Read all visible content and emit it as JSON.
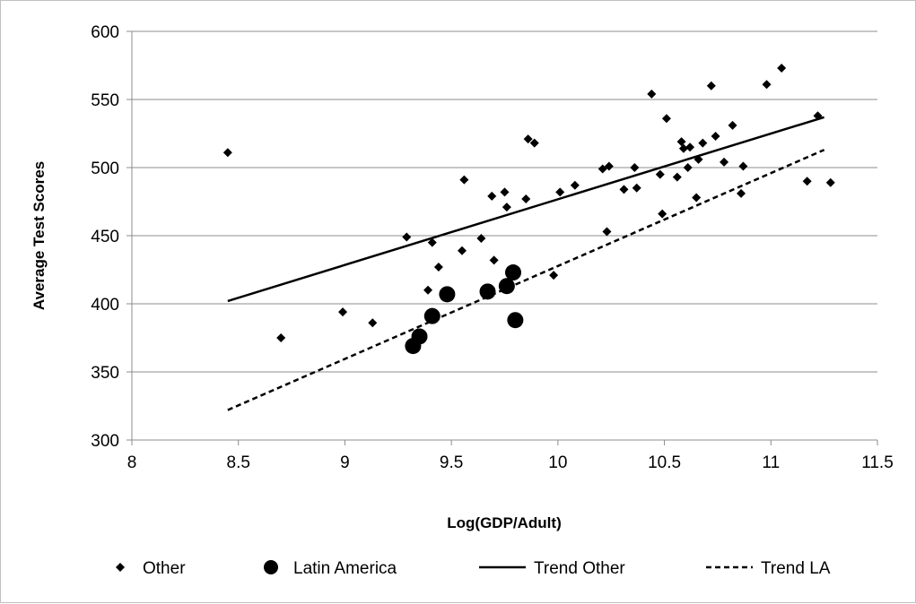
{
  "chart_data": {
    "type": "scatter",
    "title": "",
    "xlabel": "Log(GDP/Adult)",
    "ylabel": "Average Test Scores",
    "xlim": [
      8,
      11.5
    ],
    "ylim": [
      300,
      600
    ],
    "x_ticks": [
      "8",
      "8.5",
      "9",
      "9.5",
      "10",
      "10.5",
      "11",
      "11.5"
    ],
    "y_ticks": [
      "300",
      "350",
      "400",
      "450",
      "500",
      "550",
      "600"
    ],
    "grid": "horizontal",
    "legend_position": "bottom",
    "series": [
      {
        "name": "Other",
        "marker": "diamond",
        "color": "#000000",
        "points": [
          [
            8.45,
            511
          ],
          [
            8.7,
            375
          ],
          [
            8.99,
            394
          ],
          [
            9.13,
            386
          ],
          [
            9.29,
            449
          ],
          [
            9.39,
            410
          ],
          [
            9.41,
            445
          ],
          [
            9.44,
            427
          ],
          [
            9.55,
            439
          ],
          [
            9.56,
            491
          ],
          [
            9.64,
            448
          ],
          [
            9.69,
            479
          ],
          [
            9.7,
            432
          ],
          [
            9.75,
            482
          ],
          [
            9.76,
            471
          ],
          [
            9.85,
            477
          ],
          [
            9.86,
            521
          ],
          [
            9.89,
            518
          ],
          [
            9.98,
            421
          ],
          [
            10.01,
            482
          ],
          [
            10.08,
            487
          ],
          [
            10.21,
            499
          ],
          [
            10.23,
            453
          ],
          [
            10.24,
            501
          ],
          [
            10.31,
            484
          ],
          [
            10.36,
            500
          ],
          [
            10.37,
            485
          ],
          [
            10.44,
            554
          ],
          [
            10.48,
            495
          ],
          [
            10.49,
            466
          ],
          [
            10.51,
            536
          ],
          [
            10.56,
            493
          ],
          [
            10.58,
            519
          ],
          [
            10.59,
            514
          ],
          [
            10.61,
            500
          ],
          [
            10.62,
            515
          ],
          [
            10.65,
            478
          ],
          [
            10.66,
            506
          ],
          [
            10.68,
            518
          ],
          [
            10.72,
            560
          ],
          [
            10.74,
            523
          ],
          [
            10.78,
            504
          ],
          [
            10.82,
            531
          ],
          [
            10.86,
            481
          ],
          [
            10.87,
            501
          ],
          [
            10.98,
            561
          ],
          [
            11.05,
            573
          ],
          [
            11.17,
            490
          ],
          [
            11.22,
            538
          ],
          [
            11.28,
            489
          ]
        ]
      },
      {
        "name": "Latin America",
        "marker": "circle",
        "color": "#000000",
        "points": [
          [
            9.32,
            369
          ],
          [
            9.35,
            376
          ],
          [
            9.41,
            391
          ],
          [
            9.48,
            407
          ],
          [
            9.67,
            409
          ],
          [
            9.76,
            413
          ],
          [
            9.79,
            423
          ],
          [
            9.8,
            388
          ]
        ]
      }
    ],
    "trend_lines": [
      {
        "name": "Trend Other",
        "style": "solid",
        "color": "#000000",
        "points": [
          [
            8.45,
            402
          ],
          [
            11.25,
            537
          ]
        ]
      },
      {
        "name": "Trend LA",
        "style": "dashed",
        "color": "#000000",
        "points": [
          [
            8.45,
            322
          ],
          [
            11.25,
            513
          ]
        ]
      }
    ]
  }
}
